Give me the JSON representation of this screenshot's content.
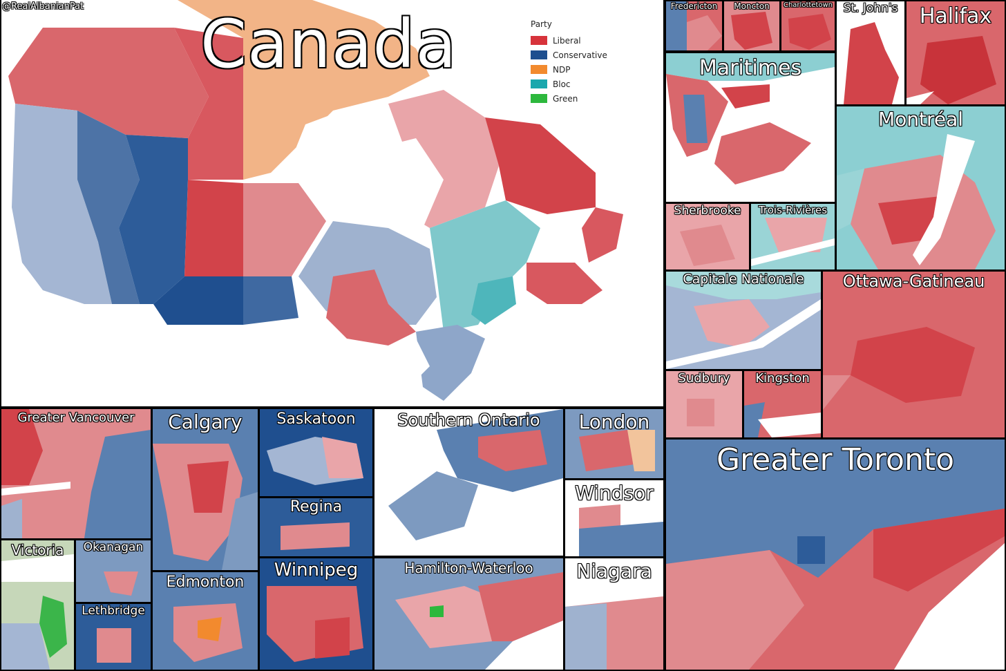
{
  "credit": "@RealAlbanianPat",
  "title": "Canada",
  "legend": {
    "title": "Party",
    "entries": [
      {
        "label": "Liberal",
        "color": "#d7333b"
      },
      {
        "label": "Conservative",
        "color": "#1f4f8f"
      },
      {
        "label": "NDP",
        "color": "#f28a2e"
      },
      {
        "label": "Bloc",
        "color": "#1aa7ad"
      },
      {
        "label": "Green",
        "color": "#2db83d"
      }
    ]
  },
  "insets": {
    "fredericton": "Fredericton",
    "moncton": "Moncton",
    "charlottetown": "Charlottetown",
    "st_johns": "St. John's",
    "halifax": "Halifax",
    "maritimes": "Maritimes",
    "montreal": "Montréal",
    "sherbrooke": "Sherbrooke",
    "trois_rivieres": "Trois-Rivières",
    "capitale_nationale": "Capitale Nationale",
    "ottawa_gatineau": "Ottawa-Gatineau",
    "sudbury": "Sudbury",
    "kingston": "Kingston",
    "greater_toronto": "Greater Toronto",
    "greater_vancouver": "Greater Vancouver",
    "calgary": "Calgary",
    "saskatoon": "Saskatoon",
    "southern_ontario": "Southern Ontario",
    "london": "London",
    "regina": "Regina",
    "windsor": "Windsor",
    "victoria": "Victoria",
    "okanagan": "Okanagan",
    "edmonton": "Edmonton",
    "winnipeg": "Winnipeg",
    "hamilton_waterloo": "Hamilton-Waterloo",
    "niagara": "Niagara",
    "lethbridge": "Lethbridge"
  }
}
